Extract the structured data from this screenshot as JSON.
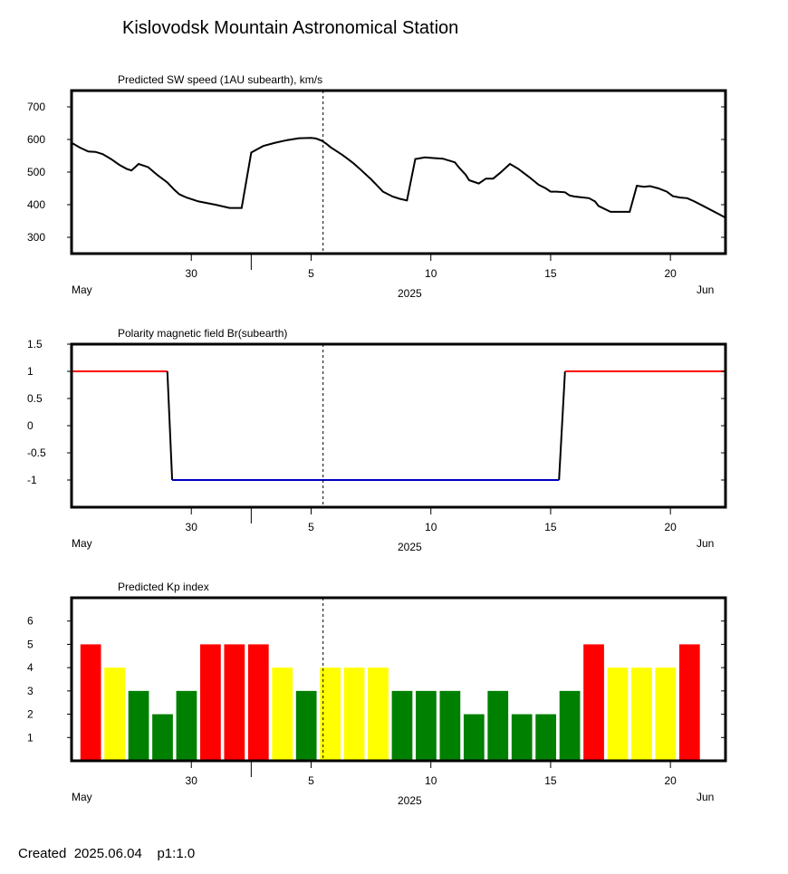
{
  "title": "Kislovodsk Mountain Astronomical Station",
  "footer": {
    "created_label": "Created",
    "date": "2025.06.04",
    "version": "p1:1.0"
  },
  "colors": {
    "red": "#ff0000",
    "yellow": "#ffff00",
    "green": "#008000",
    "blue": "#0000c0",
    "black": "#000000"
  },
  "chart_data": [
    {
      "type": "line",
      "title": "Predicted SW speed (1AU subearth), km/s",
      "ylim": [
        250,
        750
      ],
      "yticks": [
        300,
        400,
        500,
        600,
        700
      ],
      "yticklabels": [
        "300",
        "400",
        "500",
        "600",
        "700"
      ],
      "xlim": [
        25.0,
        52.3
      ],
      "xticks": [
        30,
        35,
        40,
        45,
        50
      ],
      "xticklabels": [
        "30",
        "5",
        "10",
        "15",
        "20"
      ],
      "minor_xticks": [
        32.5
      ],
      "xlabel_left": "May",
      "xlabel_center": "2025",
      "xlabel_right": "Jun",
      "marker_x": 35.5,
      "series": [
        {
          "color": "#000000",
          "x": [
            25.0,
            25.35,
            25.7,
            26.0,
            26.3,
            26.65,
            27.0,
            27.3,
            27.5,
            27.8,
            28.2,
            28.6,
            29.0,
            29.3,
            29.5,
            29.65,
            29.8,
            30.3,
            31.0,
            31.6,
            32.1,
            32.5,
            33.0,
            33.5,
            34.0,
            34.5,
            35.0,
            35.2,
            35.45,
            35.65,
            35.8,
            36.3,
            36.75,
            37.0,
            37.5,
            37.7,
            38.0,
            38.4,
            38.7,
            39.0,
            39.35,
            39.75,
            40.1,
            40.5,
            41.0,
            41.2,
            41.45,
            41.6,
            42.0,
            42.3,
            42.6,
            42.9,
            43.3,
            43.65,
            44.1,
            44.5,
            44.8,
            45.0,
            45.25,
            45.6,
            45.8,
            46.0,
            46.6,
            46.85,
            47.0,
            47.5,
            47.85,
            48.3,
            48.6,
            48.9,
            49.15,
            49.5,
            49.85,
            50.1,
            50.4,
            50.7,
            51.0,
            51.4,
            52.0,
            52.3
          ],
          "y": [
            590,
            575,
            563,
            562,
            555,
            540,
            522,
            510,
            505,
            525,
            515,
            490,
            468,
            445,
            432,
            427,
            422,
            410,
            400,
            390,
            390,
            560,
            580,
            590,
            598,
            604,
            605,
            603,
            596,
            586,
            577,
            553,
            528,
            512,
            478,
            463,
            440,
            425,
            418,
            413,
            540,
            545,
            543,
            541,
            530,
            512,
            492,
            475,
            465,
            480,
            480,
            498,
            525,
            510,
            485,
            461,
            450,
            440,
            440,
            438,
            428,
            425,
            420,
            410,
            396,
            378,
            378,
            378,
            458,
            455,
            457,
            450,
            440,
            426,
            422,
            420,
            410,
            395,
            372,
            360
          ]
        }
      ]
    },
    {
      "type": "line",
      "title": "Polarity magnetic field  Br(subearth)",
      "ylim": [
        -1.5,
        1.5
      ],
      "yticks": [
        -1,
        -0.5,
        0,
        0.5,
        1,
        1.5
      ],
      "yticklabels": [
        "-1",
        "-0.5",
        "0",
        "0.5",
        "1",
        "1.5"
      ],
      "xlim": [
        25.0,
        52.3
      ],
      "xticks": [
        30,
        35,
        40,
        45,
        50
      ],
      "xticklabels": [
        "30",
        "5",
        "10",
        "15",
        "20"
      ],
      "minor_xticks": [
        32.5
      ],
      "xlabel_left": "May",
      "xlabel_center": "2025",
      "xlabel_right": "Jun",
      "marker_x": 35.5,
      "segments": [
        {
          "color": "#ff0000",
          "x": [
            25.0,
            29.0
          ],
          "y": [
            1,
            1
          ]
        },
        {
          "color": "#000000",
          "x": [
            29.0,
            29.2
          ],
          "y": [
            1,
            -1
          ]
        },
        {
          "color": "#0000c0",
          "x": [
            29.2,
            45.35
          ],
          "y": [
            -1,
            -1
          ]
        },
        {
          "color": "#000000",
          "x": [
            45.35,
            45.6
          ],
          "y": [
            -1,
            1
          ]
        },
        {
          "color": "#ff0000",
          "x": [
            45.6,
            52.3
          ],
          "y": [
            1,
            1
          ]
        }
      ]
    },
    {
      "type": "bar",
      "title": "Predicted Kp index",
      "ylim": [
        0,
        7
      ],
      "yticks": [
        1,
        2,
        3,
        4,
        5,
        6
      ],
      "yticklabels": [
        "1",
        "2",
        "3",
        "4",
        "5",
        "6"
      ],
      "xlim": [
        25.0,
        52.3
      ],
      "xticks": [
        30,
        35,
        40,
        45,
        50
      ],
      "xticklabels": [
        "30",
        "5",
        "10",
        "15",
        "20"
      ],
      "minor_xticks": [
        32.5
      ],
      "xlabel_left": "May",
      "xlabel_center": "2025",
      "xlabel_right": "Jun",
      "marker_x": 35.5,
      "bar_x": [
        25.8,
        26.8,
        27.8,
        28.8,
        29.8,
        30.8,
        31.8,
        32.8,
        33.8,
        34.8,
        35.8,
        36.8,
        37.8,
        38.8,
        39.8,
        40.8,
        41.8,
        42.8,
        43.8,
        44.8,
        45.8,
        46.8,
        47.8,
        48.8,
        49.8,
        50.8
      ],
      "values": [
        5,
        4,
        3,
        2,
        3,
        5,
        5,
        5,
        4,
        3,
        4,
        4,
        4,
        3,
        3,
        3,
        2,
        3,
        2,
        2,
        3,
        5,
        4,
        4,
        4,
        5
      ]
    }
  ]
}
